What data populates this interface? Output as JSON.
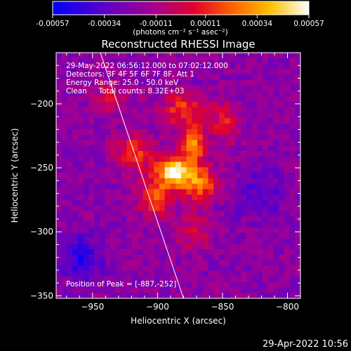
{
  "colorbar": {
    "tick_labels": [
      "-0.00057",
      "-0.00034",
      "-0.00011",
      "0.00011",
      "0.00034",
      "0.00057"
    ],
    "tick_values": [
      -0.00057,
      -0.00034,
      -0.00011,
      0.00011,
      0.00034,
      0.00057
    ],
    "range": [
      -0.00057,
      0.00057
    ],
    "units": "(photons cm⁻² s⁻¹ asec⁻²)",
    "colors": [
      "#0000ff",
      "#7b00b8",
      "#d4005a",
      "#ff6a00",
      "#ffd000",
      "#ffffff"
    ]
  },
  "chart_data": {
    "type": "heatmap",
    "title": "Reconstructed RHESSI Image",
    "xlabel": "Heliocentric X (arcsec)",
    "ylabel": "Heliocentric Y (arcsec)",
    "xlim": [
      -978,
      -790
    ],
    "ylim": [
      -352,
      -160
    ],
    "x_ticks": [
      -950,
      -900,
      -850,
      -800
    ],
    "x_tick_labels": [
      "−950",
      "−900",
      "−850",
      "−800"
    ],
    "y_ticks": [
      -350,
      -300,
      -250,
      -200
    ],
    "y_tick_labels": [
      "−350",
      "−300",
      "−250",
      "−200"
    ],
    "annotations": [
      "29-May-2022 06:56:12.000 to 07:02:12.000",
      "Detectors: 3F 4F 5F 6F 7F 8F, Att 1",
      "Energy Range: 25.0 - 50.0 keV",
      "Clean     Total counts: 8.32E+03"
    ],
    "peak_label": "Position of Peak = [-887,-252]",
    "peak": [
      -887,
      -252
    ],
    "limb_line": [
      [
        -944,
        -160
      ],
      [
        -880,
        -352
      ]
    ],
    "sources": [
      {
        "x": -887,
        "y": -252,
        "amp": 1.0,
        "sx": 9,
        "sy": 8
      },
      {
        "x": -872,
        "y": -232,
        "amp": 0.72,
        "sx": 6,
        "sy": 9
      },
      {
        "x": -868,
        "y": -262,
        "amp": 0.62,
        "sx": 10,
        "sy": 10
      },
      {
        "x": -902,
        "y": -272,
        "amp": 0.55,
        "sx": 9,
        "sy": 11
      },
      {
        "x": -880,
        "y": -205,
        "amp": 0.5,
        "sx": 12,
        "sy": 9
      },
      {
        "x": -918,
        "y": -238,
        "amp": 0.45,
        "sx": 11,
        "sy": 10
      },
      {
        "x": -848,
        "y": -215,
        "amp": 0.35,
        "sx": 8,
        "sy": 12
      },
      {
        "x": -935,
        "y": -195,
        "amp": 0.3,
        "sx": 10,
        "sy": 8
      },
      {
        "x": -872,
        "y": -300,
        "amp": 0.3,
        "sx": 10,
        "sy": 10
      },
      {
        "x": -960,
        "y": -320,
        "amp": -0.35,
        "sx": 12,
        "sy": 12
      },
      {
        "x": -820,
        "y": -270,
        "amp": -0.2,
        "sx": 14,
        "sy": 14
      }
    ],
    "background_level": -0.35,
    "grid": false
  },
  "footer": {
    "date": "29-Apr-2022 10:56"
  }
}
